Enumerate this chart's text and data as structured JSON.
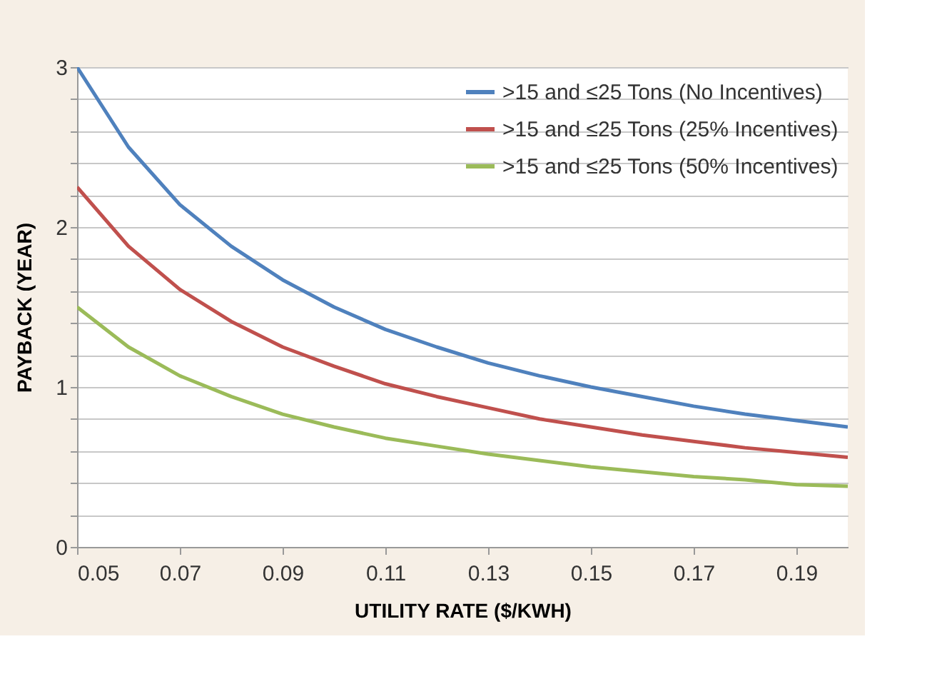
{
  "chart_data": {
    "type": "line",
    "xlabel": "UTILITY RATE ($/KWH)",
    "ylabel": "PAYBACK (YEAR)",
    "x": [
      0.05,
      0.06,
      0.07,
      0.08,
      0.09,
      0.1,
      0.11,
      0.12,
      0.13,
      0.14,
      0.15,
      0.16,
      0.17,
      0.18,
      0.19,
      0.2
    ],
    "series": [
      {
        "name": ">15 and ≤25 Tons (No Incentives)",
        "color": "#4f81bd",
        "values": [
          3.0,
          2.5,
          2.14,
          1.88,
          1.67,
          1.5,
          1.36,
          1.25,
          1.15,
          1.07,
          1.0,
          0.94,
          0.88,
          0.83,
          0.79,
          0.75
        ]
      },
      {
        "name": ">15 and ≤25 Tons (25% Incentives)",
        "color": "#c0504d",
        "values": [
          2.25,
          1.88,
          1.61,
          1.41,
          1.25,
          1.13,
          1.02,
          0.94,
          0.87,
          0.8,
          0.75,
          0.7,
          0.66,
          0.62,
          0.59,
          0.56
        ]
      },
      {
        "name": ">15 and ≤25 Tons (50% Incentives)",
        "color": "#9bbb59",
        "values": [
          1.5,
          1.25,
          1.07,
          0.94,
          0.83,
          0.75,
          0.68,
          0.63,
          0.58,
          0.54,
          0.5,
          0.47,
          0.44,
          0.42,
          0.39,
          0.38
        ]
      }
    ],
    "xlim": [
      0.05,
      0.2
    ],
    "xticks": [
      0.05,
      0.07,
      0.09,
      0.11,
      0.13,
      0.15,
      0.17,
      0.19
    ],
    "ylim": [
      0,
      3
    ],
    "yticks": [
      0,
      {
        "value": 0.2,
        "label": null
      },
      {
        "value": 0.4,
        "label": null
      },
      {
        "value": 0.6,
        "label": null
      },
      {
        "value": 0.8,
        "label": null
      },
      1,
      {
        "value": 1.2,
        "label": null
      },
      {
        "value": 1.4,
        "label": null
      },
      {
        "value": 1.6,
        "label": null
      },
      {
        "value": 1.8,
        "label": null
      },
      2,
      {
        "value": 2.2,
        "label": null
      },
      {
        "value": 2.4,
        "label": null
      },
      {
        "value": 2.6,
        "label": null
      },
      {
        "value": 2.8,
        "label": null
      },
      3
    ],
    "grid": "y",
    "legend": "top right",
    "marker": "none",
    "line_style": "solid"
  }
}
